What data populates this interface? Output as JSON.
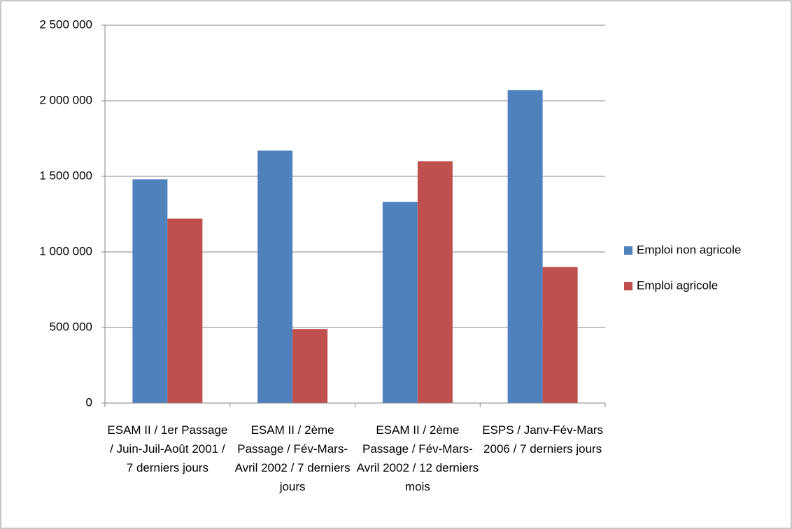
{
  "chart_data": {
    "type": "bar",
    "categories": [
      "ESAM II / 1er Passage / Juin-Juil-Août 2001 / 7 derniers jours",
      "ESAM II / 2ème Passage / Fév-Mars-Avril 2002 / 7 derniers jours",
      "ESAM II / 2ème Passage / Fév-Mars-Avril 2002 / 12 derniers mois",
      "ESPS / Janv-Fév-Mars 2006 / 7 derniers jours"
    ],
    "series": [
      {
        "name": "Emploi non agricole",
        "color": "#4f81bd",
        "values": [
          1480000,
          1670000,
          1330000,
          2070000
        ]
      },
      {
        "name": "Emploi agricole",
        "color": "#c0504d",
        "values": [
          1220000,
          490000,
          1600000,
          900000
        ]
      }
    ],
    "ylim": [
      0,
      2500000
    ],
    "yticks": [
      0,
      {
        "value": 500000,
        "label": "500 000"
      },
      {
        "value": 1000000,
        "label": "1 000 000"
      },
      {
        "value": 1500000,
        "label": "1 500 000"
      },
      {
        "value": 2000000,
        "label": "2 000 000"
      },
      {
        "value": 2500000,
        "label": "2 500 000"
      }
    ],
    "grid": true,
    "legend": "right"
  }
}
